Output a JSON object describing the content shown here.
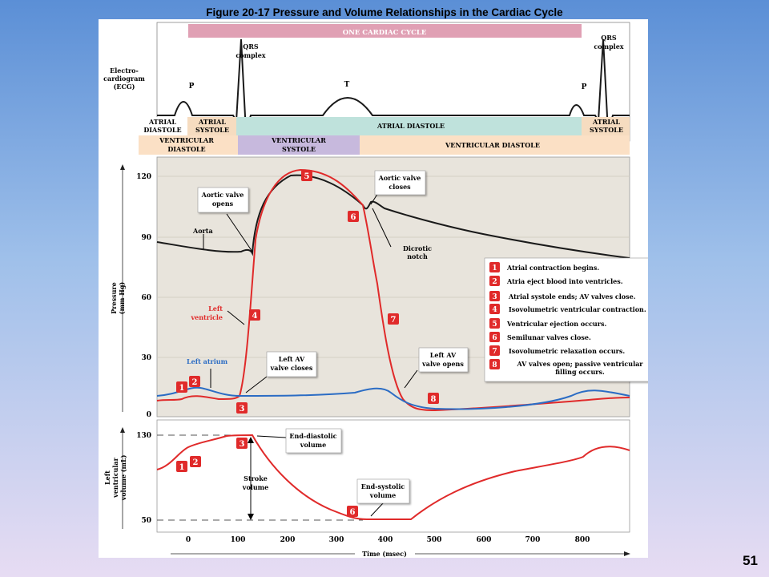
{
  "figure": {
    "title": "Figure 20-17  Pressure and Volume Relationships in the Cardiac Cycle",
    "slide_number": "51"
  },
  "ecg": {
    "cycle_label": "ONE CARDIAC CYCLE",
    "ylabel": [
      "Electro-",
      "cardiogram",
      "(ECG)"
    ],
    "qrs_label_1": [
      "QRS",
      "complex"
    ],
    "qrs_label_2": [
      "QRS",
      "complex"
    ],
    "p_label_1": "P",
    "p_label_2": "P",
    "t_label": "T"
  },
  "phases": {
    "atrial": [
      {
        "label": [
          "ATRIAL",
          "DIASTOLE"
        ],
        "color": "#ffffff"
      },
      {
        "label": [
          "ATRIAL",
          "SYSTOLE"
        ],
        "color": "#f6dcc0"
      },
      {
        "label": [
          "ATRIAL DIASTOLE"
        ],
        "color": "#bfe2dc"
      },
      {
        "label": [
          "ATRIAL",
          "SYSTOLE"
        ],
        "color": "#f6dcc0"
      }
    ],
    "ventricular": [
      {
        "label": [
          "VENTRICULAR",
          "DIASTOLE"
        ],
        "color": "#fbe0c5"
      },
      {
        "label": [
          "VENTRICULAR",
          "SYSTOLE"
        ],
        "color": "#c7b9dd"
      },
      {
        "label": [
          "VENTRICULAR DIASTOLE"
        ],
        "color": "#fbe0c5"
      }
    ]
  },
  "pressure_chart": {
    "ylabel": [
      "Pressure",
      "(mm Hg)"
    ],
    "yticks": [
      "120",
      "90",
      "60",
      "30",
      "0"
    ],
    "labels": {
      "aortic_opens": [
        "Aortic valve",
        "opens"
      ],
      "aortic_closes": [
        "Aortic valve",
        "closes"
      ],
      "aorta": "Aorta",
      "dicrotic": [
        "Dicrotic",
        "notch"
      ],
      "left_ventricle": [
        "Left",
        "ventricle"
      ],
      "left_atrium": "Left atrium",
      "av_closes": [
        "Left AV",
        "valve closes"
      ],
      "av_opens": [
        "Left AV",
        "valve opens"
      ]
    },
    "colors": {
      "aorta": "#1a1a1a",
      "ventricle": "#e02a2a",
      "atrium": "#2b6cc4",
      "background": "#e8e4dc"
    }
  },
  "legend": [
    {
      "num": "1",
      "text": "Atrial contraction begins."
    },
    {
      "num": "2",
      "text": "Atria eject blood into ventricles."
    },
    {
      "num": "3",
      "text": "Atrial systole ends; AV valves close."
    },
    {
      "num": "4",
      "text": "Isovolumetric ventricular contraction."
    },
    {
      "num": "5",
      "text": "Ventricular ejection occurs."
    },
    {
      "num": "6",
      "text": "Semilunar valves close."
    },
    {
      "num": "7",
      "text": "Isovolumetric relaxation occurs."
    },
    {
      "num": "8",
      "text": "AV valves open; passive ventricular filling occurs."
    }
  ],
  "volume_chart": {
    "ylabel": [
      "Left",
      "ventricular",
      "volume (mL)"
    ],
    "yticks": [
      "130",
      "50"
    ],
    "labels": {
      "edv": [
        "End-diastolic",
        "volume"
      ],
      "esv": [
        "End-systolic",
        "volume"
      ],
      "stroke": [
        "Stroke",
        "volume"
      ]
    }
  },
  "time_axis": {
    "ticks": [
      "0",
      "100",
      "200",
      "300",
      "400",
      "500",
      "600",
      "700",
      "800"
    ],
    "label": "Time (msec)"
  },
  "markers": {
    "pressure": [
      "1",
      "2",
      "3",
      "4",
      "5",
      "6",
      "7",
      "8"
    ],
    "volume": [
      "1",
      "2",
      "3",
      "6"
    ]
  },
  "marker_color": "#e02a2a"
}
